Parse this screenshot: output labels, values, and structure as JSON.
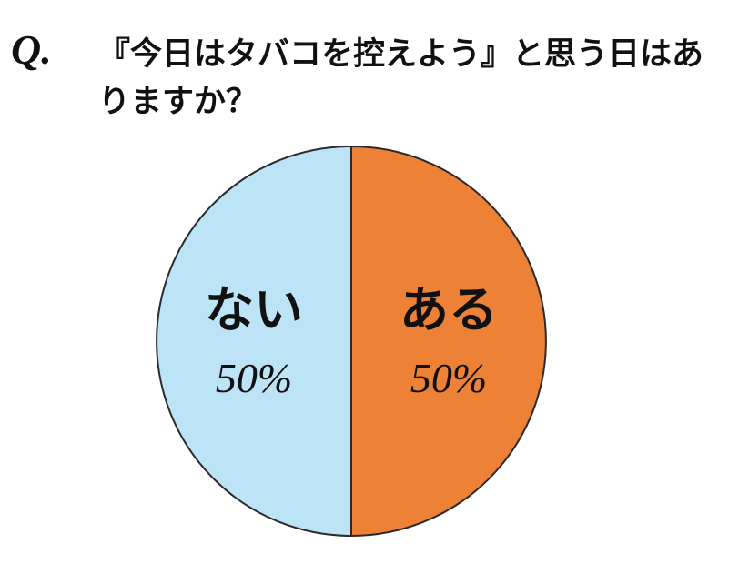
{
  "chart_data": {
    "type": "pie",
    "prefix": "Q.",
    "title": "『今日はタバコを控えよう』と思う日はありますか？",
    "categories": [
      "ある",
      "ない"
    ],
    "values": [
      50,
      50
    ],
    "value_labels": [
      "50%",
      "50%"
    ],
    "colors": [
      "#ed8136",
      "#bde3f7"
    ]
  }
}
